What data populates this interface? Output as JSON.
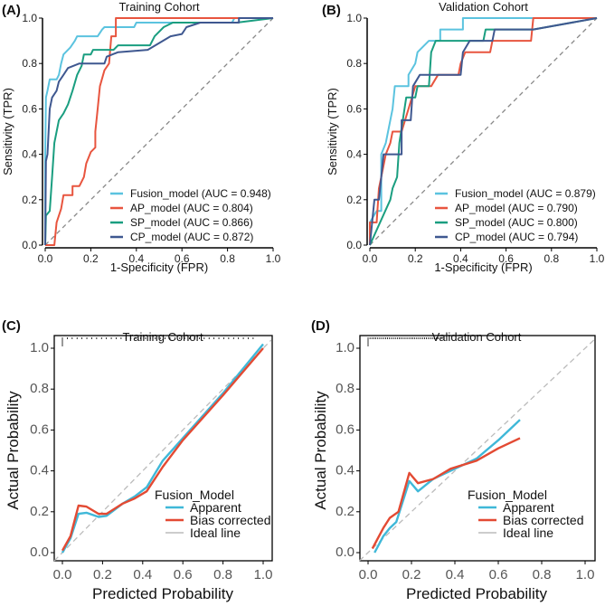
{
  "chart_data": [
    {
      "type": "line",
      "panel_label": "(A)",
      "title": "Training Cohort",
      "xlabel": "1-Specificity (FPR)",
      "ylabel": "Sensitivity (TPR)",
      "xlim": [
        0,
        1
      ],
      "ylim": [
        0,
        1
      ],
      "ticks": [
        "0.0",
        "0.2",
        "0.4",
        "0.6",
        "0.8",
        "1.0"
      ],
      "legend_position": "bottom-right",
      "series": [
        {
          "name": "Fusion_model (AUC = 0.948)",
          "color": "#5bc3df",
          "points": [
            [
              0,
              0
            ],
            [
              0,
              0.4
            ],
            [
              0.003,
              0.65
            ],
            [
              0.01,
              0.68
            ],
            [
              0.02,
              0.73
            ],
            [
              0.05,
              0.73
            ],
            [
              0.06,
              0.75
            ],
            [
              0.07,
              0.8
            ],
            [
              0.08,
              0.84
            ],
            [
              0.11,
              0.87
            ],
            [
              0.13,
              0.9
            ],
            [
              0.14,
              0.92
            ],
            [
              0.23,
              0.92
            ],
            [
              0.25,
              0.95
            ],
            [
              0.26,
              0.96
            ],
            [
              0.39,
              0.96
            ],
            [
              0.4,
              0.98
            ],
            [
              0.82,
              0.98
            ],
            [
              0.83,
              1
            ],
            [
              1,
              1
            ]
          ]
        },
        {
          "name": "AP_model (AUC = 0.804)",
          "color": "#e8553f",
          "points": [
            [
              0,
              0
            ],
            [
              0.04,
              0
            ],
            [
              0.05,
              0.1
            ],
            [
              0.07,
              0.16
            ],
            [
              0.08,
              0.22
            ],
            [
              0.12,
              0.22
            ],
            [
              0.12,
              0.26
            ],
            [
              0.15,
              0.26
            ],
            [
              0.17,
              0.3
            ],
            [
              0.18,
              0.36
            ],
            [
              0.2,
              0.41
            ],
            [
              0.22,
              0.43
            ],
            [
              0.22,
              0.5
            ],
            [
              0.23,
              0.6
            ],
            [
              0.24,
              0.7
            ],
            [
              0.26,
              0.77
            ],
            [
              0.28,
              0.8
            ],
            [
              0.29,
              0.92
            ],
            [
              0.31,
              0.92
            ],
            [
              0.31,
              1
            ],
            [
              1,
              1
            ]
          ]
        },
        {
          "name": "SP_model (AUC = 0.866)",
          "color": "#1a9e80",
          "points": [
            [
              0,
              0
            ],
            [
              0.003,
              0.13
            ],
            [
              0.02,
              0.15
            ],
            [
              0.03,
              0.3
            ],
            [
              0.04,
              0.45
            ],
            [
              0.05,
              0.5
            ],
            [
              0.06,
              0.55
            ],
            [
              0.08,
              0.58
            ],
            [
              0.1,
              0.62
            ],
            [
              0.12,
              0.68
            ],
            [
              0.14,
              0.75
            ],
            [
              0.16,
              0.79
            ],
            [
              0.17,
              0.84
            ],
            [
              0.2,
              0.84
            ],
            [
              0.21,
              0.86
            ],
            [
              0.3,
              0.86
            ],
            [
              0.32,
              0.88
            ],
            [
              0.46,
              0.88
            ],
            [
              0.48,
              0.92
            ],
            [
              0.52,
              0.96
            ],
            [
              0.56,
              0.98
            ],
            [
              0.84,
              0.98
            ],
            [
              1,
              1
            ]
          ]
        },
        {
          "name": "CP_model (AUC = 0.872)",
          "color": "#3f5890",
          "points": [
            [
              0,
              0
            ],
            [
              0.003,
              0.37
            ],
            [
              0.01,
              0.4
            ],
            [
              0.02,
              0.6
            ],
            [
              0.03,
              0.65
            ],
            [
              0.05,
              0.68
            ],
            [
              0.06,
              0.72
            ],
            [
              0.08,
              0.75
            ],
            [
              0.1,
              0.78
            ],
            [
              0.15,
              0.8
            ],
            [
              0.26,
              0.8
            ],
            [
              0.27,
              0.83
            ],
            [
              0.32,
              0.85
            ],
            [
              0.45,
              0.86
            ],
            [
              0.5,
              0.89
            ],
            [
              0.55,
              0.92
            ],
            [
              0.6,
              0.93
            ],
            [
              0.62,
              0.96
            ],
            [
              0.68,
              0.98
            ],
            [
              0.85,
              0.98
            ],
            [
              0.85,
              1
            ],
            [
              1,
              1
            ]
          ]
        }
      ]
    },
    {
      "type": "line",
      "panel_label": "(B)",
      "title": "Validation Cohort",
      "xlabel": "1-Specificity (FPR)",
      "ylabel": "Sensitivity (TPR)",
      "xlim": [
        0,
        1
      ],
      "ylim": [
        0,
        1
      ],
      "ticks": [
        "0.0",
        "0.2",
        "0.4",
        "0.6",
        "0.8",
        "1.0"
      ],
      "legend_position": "bottom-right",
      "series": [
        {
          "name": "Fusion_model (AUC = 0.879)",
          "color": "#5bc3df",
          "points": [
            [
              0,
              0
            ],
            [
              0,
              0.1
            ],
            [
              0.03,
              0.15
            ],
            [
              0.05,
              0.15
            ],
            [
              0.05,
              0.4
            ],
            [
              0.07,
              0.45
            ],
            [
              0.09,
              0.55
            ],
            [
              0.1,
              0.6
            ],
            [
              0.11,
              0.7
            ],
            [
              0.17,
              0.7
            ],
            [
              0.17,
              0.75
            ],
            [
              0.2,
              0.8
            ],
            [
              0.21,
              0.85
            ],
            [
              0.26,
              0.9
            ],
            [
              0.31,
              0.9
            ],
            [
              0.31,
              0.95
            ],
            [
              0.41,
              0.95
            ],
            [
              0.41,
              1
            ],
            [
              1,
              1
            ]
          ]
        },
        {
          "name": "AP_model (AUC = 0.790)",
          "color": "#e8553f",
          "points": [
            [
              0,
              0
            ],
            [
              0,
              0.1
            ],
            [
              0.03,
              0.1
            ],
            [
              0.04,
              0.25
            ],
            [
              0.05,
              0.3
            ],
            [
              0.07,
              0.4
            ],
            [
              0.09,
              0.45
            ],
            [
              0.1,
              0.5
            ],
            [
              0.14,
              0.5
            ],
            [
              0.17,
              0.6
            ],
            [
              0.2,
              0.7
            ],
            [
              0.27,
              0.7
            ],
            [
              0.3,
              0.75
            ],
            [
              0.39,
              0.75
            ],
            [
              0.4,
              0.8
            ],
            [
              0.42,
              0.85
            ],
            [
              0.53,
              0.85
            ],
            [
              0.54,
              0.9
            ],
            [
              0.71,
              0.9
            ],
            [
              0.72,
              1
            ],
            [
              1,
              1
            ]
          ]
        },
        {
          "name": "SP_model (AUC = 0.800)",
          "color": "#1a9e80",
          "points": [
            [
              0,
              0
            ],
            [
              0.09,
              0.2
            ],
            [
              0.1,
              0.25
            ],
            [
              0.12,
              0.3
            ],
            [
              0.13,
              0.45
            ],
            [
              0.16,
              0.65
            ],
            [
              0.2,
              0.65
            ],
            [
              0.21,
              0.7
            ],
            [
              0.26,
              0.7
            ],
            [
              0.27,
              0.85
            ],
            [
              0.29,
              0.9
            ],
            [
              0.5,
              0.9
            ],
            [
              0.51,
              0.95
            ],
            [
              0.72,
              0.95
            ],
            [
              1,
              1
            ]
          ]
        },
        {
          "name": "CP_model (AUC = 0.794)",
          "color": "#3f5890",
          "points": [
            [
              0,
              0
            ],
            [
              0.02,
              0.2
            ],
            [
              0.04,
              0.2
            ],
            [
              0.05,
              0.3
            ],
            [
              0.06,
              0.4
            ],
            [
              0.14,
              0.4
            ],
            [
              0.14,
              0.55
            ],
            [
              0.18,
              0.55
            ],
            [
              0.19,
              0.7
            ],
            [
              0.22,
              0.75
            ],
            [
              0.4,
              0.75
            ],
            [
              0.41,
              0.85
            ],
            [
              0.44,
              0.9
            ],
            [
              0.54,
              0.9
            ],
            [
              0.55,
              0.95
            ],
            [
              0.72,
              0.95
            ],
            [
              1,
              1
            ]
          ]
        }
      ]
    },
    {
      "type": "line",
      "panel_label": "(C)",
      "title": "Training Cohort",
      "xlabel": "Predicted Probability",
      "ylabel": "Actual Probability",
      "xlim": [
        0,
        1
      ],
      "ylim": [
        0,
        1
      ],
      "ticks": [
        "0.0",
        "0.2",
        "0.4",
        "0.6",
        "0.8",
        "1.0"
      ],
      "legend_title": "Fusion_Model",
      "legend_position": "bottom-right",
      "rug_range": [
        0,
        0.95
      ],
      "series": [
        {
          "name": "Apparent",
          "color": "#3fb8d8",
          "points": [
            [
              0,
              0
            ],
            [
              0.04,
              0.07
            ],
            [
              0.08,
              0.19
            ],
            [
              0.12,
              0.195
            ],
            [
              0.18,
              0.175
            ],
            [
              0.22,
              0.18
            ],
            [
              0.3,
              0.24
            ],
            [
              0.36,
              0.275
            ],
            [
              0.42,
              0.32
            ],
            [
              0.5,
              0.45
            ],
            [
              0.6,
              0.56
            ],
            [
              0.8,
              0.78
            ],
            [
              1,
              1.02
            ]
          ]
        },
        {
          "name": "Bias corrected",
          "color": "#e34a33",
          "points": [
            [
              0,
              0.01
            ],
            [
              0.04,
              0.08
            ],
            [
              0.08,
              0.23
            ],
            [
              0.12,
              0.225
            ],
            [
              0.18,
              0.19
            ],
            [
              0.22,
              0.19
            ],
            [
              0.3,
              0.24
            ],
            [
              0.36,
              0.265
            ],
            [
              0.42,
              0.3
            ],
            [
              0.5,
              0.42
            ],
            [
              0.6,
              0.55
            ],
            [
              0.8,
              0.77
            ],
            [
              1,
              1.0
            ]
          ]
        },
        {
          "name": "Ideal line",
          "color": "#bbbbbb",
          "dashed": true,
          "points": [
            [
              -0.04,
              -0.04
            ],
            [
              1.04,
              1.04
            ]
          ]
        }
      ]
    },
    {
      "type": "line",
      "panel_label": "(D)",
      "title": "Validation Cohort",
      "xlabel": "Predicted Probability",
      "ylabel": "Actual Probability",
      "xlim": [
        0,
        1
      ],
      "ylim": [
        0,
        1
      ],
      "ticks": [
        "0.0",
        "0.2",
        "0.4",
        "0.6",
        "0.8",
        "1.0"
      ],
      "legend_title": "Fusion_Model",
      "legend_position": "bottom-right",
      "rug_range": [
        0,
        0.35
      ],
      "series": [
        {
          "name": "Apparent",
          "color": "#3fb8d8",
          "points": [
            [
              0.03,
              0
            ],
            [
              0.07,
              0.08
            ],
            [
              0.1,
              0.12
            ],
            [
              0.13,
              0.15
            ],
            [
              0.19,
              0.35
            ],
            [
              0.23,
              0.3
            ],
            [
              0.3,
              0.36
            ],
            [
              0.4,
              0.41
            ],
            [
              0.5,
              0.46
            ],
            [
              0.6,
              0.55
            ],
            [
              0.7,
              0.65
            ]
          ]
        },
        {
          "name": "Bias corrected",
          "color": "#e34a33",
          "points": [
            [
              0.02,
              0.02
            ],
            [
              0.07,
              0.12
            ],
            [
              0.1,
              0.17
            ],
            [
              0.14,
              0.2
            ],
            [
              0.19,
              0.39
            ],
            [
              0.23,
              0.34
            ],
            [
              0.3,
              0.36
            ],
            [
              0.38,
              0.41
            ],
            [
              0.5,
              0.45
            ],
            [
              0.6,
              0.51
            ],
            [
              0.7,
              0.56
            ]
          ]
        },
        {
          "name": "Ideal line",
          "color": "#bbbbbb",
          "dashed": true,
          "points": [
            [
              -0.04,
              -0.04
            ],
            [
              1.04,
              1.04
            ]
          ]
        }
      ]
    }
  ]
}
